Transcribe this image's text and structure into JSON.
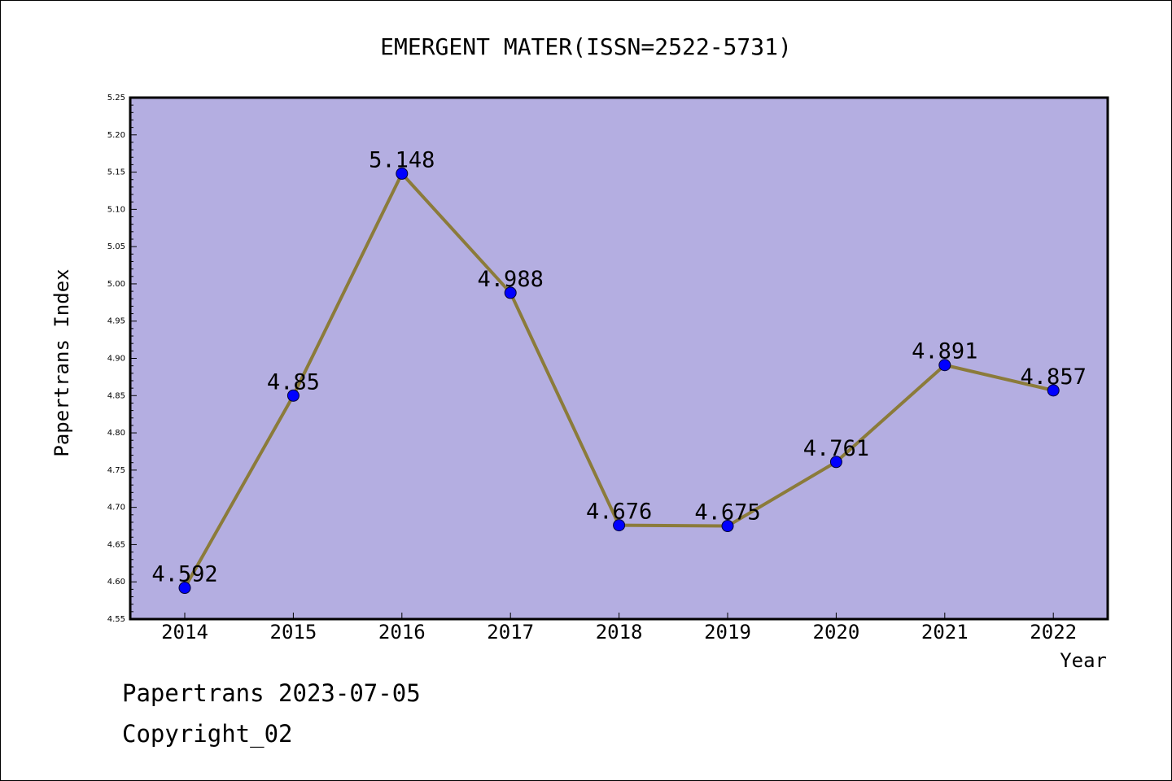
{
  "chart_data": {
    "type": "line",
    "title": "EMERGENT MATER(ISSN=2522-5731)",
    "xlabel": "Year",
    "ylabel": "Papertrans Index",
    "categories": [
      "2014",
      "2015",
      "2016",
      "2017",
      "2018",
      "2019",
      "2020",
      "2021",
      "2022"
    ],
    "values": [
      4.592,
      4.85,
      5.148,
      4.988,
      4.676,
      4.675,
      4.761,
      4.891,
      4.857
    ],
    "data_labels": [
      "4.592",
      "4.85",
      "5.148",
      "4.988",
      "4.676",
      "4.675",
      "4.761",
      "4.891",
      "4.857"
    ],
    "ylim": [
      4.55,
      5.25
    ],
    "yticks": [
      "4.55",
      "4.60",
      "4.65",
      "4.70",
      "4.75",
      "4.80",
      "4.85",
      "4.90",
      "4.95",
      "5.00",
      "5.05",
      "5.10",
      "5.15",
      "5.20",
      "5.25"
    ],
    "grid": false,
    "colors": {
      "plot_background": "#b4aee1",
      "line": "#8b7b3a",
      "marker": "#0000ff"
    }
  },
  "footer": {
    "line1": "Papertrans 2023-07-05",
    "line2": "Copyright_02"
  }
}
